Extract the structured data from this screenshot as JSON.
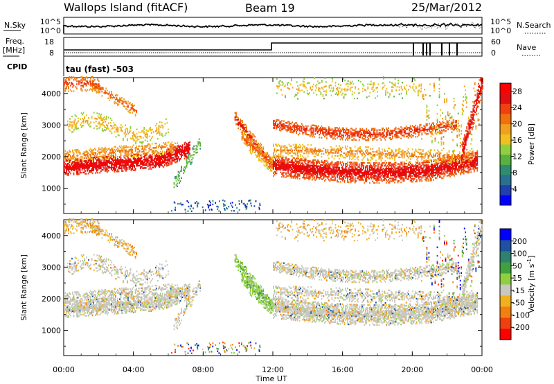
{
  "header": {
    "station": "Wallops Island (fitACF)",
    "beam": "Beam 19",
    "date": "25/Mar/2012"
  },
  "top_panels": {
    "nsky_label": "N.Sky",
    "nsearch_label": "N.Search",
    "noise_ticks_left": [
      "10^5",
      "10^0"
    ],
    "noise_ticks_right": [
      "10^5",
      "10^0"
    ],
    "freq_label_1": "Freq.",
    "freq_label_2": "[MHz]",
    "freq_ticks": [
      "18",
      "8"
    ],
    "nave_label": "Nave",
    "nave_ticks": [
      "60",
      "0"
    ],
    "cpid_label": "CPID",
    "cpid_text": "tau (fast) -503"
  },
  "colors": {
    "power": [
      "#0000ff",
      "#2040b0",
      "#2a7090",
      "#308c70",
      "#5ab040",
      "#90d040",
      "#f0c020",
      "#f0a020",
      "#f07010",
      "#f04010",
      "#e01010",
      "#ff0000"
    ],
    "velocity": [
      "#ff0000",
      "#f04010",
      "#f08010",
      "#f0b020",
      "#c8c8c0",
      "#90d040",
      "#40a040",
      "#308070",
      "#2050a0",
      "#0000ff"
    ]
  },
  "chart_data": [
    {
      "type": "heatmap",
      "panel": "power",
      "ylabel": "Slant Range [km]",
      "ylim": [
        200,
        4500
      ],
      "yticks": [
        "1000",
        "2000",
        "3000",
        "4000"
      ],
      "xlim_hours": [
        0,
        24
      ],
      "colorbar_label": "Power [dB]",
      "colorbar_ticks": [
        "4",
        "8",
        "12",
        "16",
        "20",
        "24",
        "28"
      ],
      "colorbar_range": [
        0,
        30
      ]
    },
    {
      "type": "heatmap",
      "panel": "velocity",
      "ylabel": "Slant Range [km]",
      "ylim": [
        200,
        4500
      ],
      "yticks": [
        "1000",
        "2000",
        "3000",
        "4000"
      ],
      "xlim_hours": [
        0,
        24
      ],
      "colorbar_label": "Velocity [m s",
      "colorbar_label_sup": "-1",
      "colorbar_label_end": "]",
      "colorbar_ticks": [
        "200",
        "100",
        "50",
        "15",
        "-15",
        "-50",
        "-100",
        "-200"
      ]
    }
  ],
  "x_axis": {
    "ticks": [
      "00:00",
      "04:00",
      "08:00",
      "12:00",
      "16:00",
      "20:00",
      "00:00"
    ],
    "label": "Time UT"
  }
}
